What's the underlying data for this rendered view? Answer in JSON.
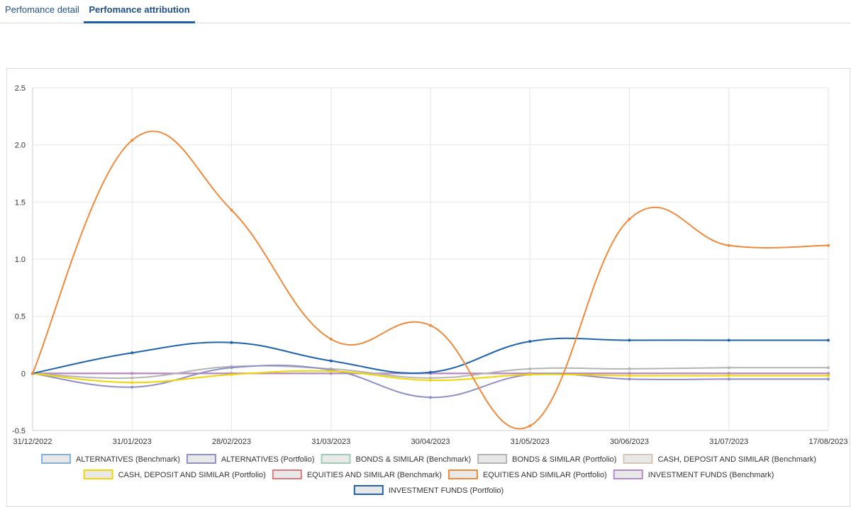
{
  "tabs": [
    {
      "label": "Perfomance detail",
      "active": false
    },
    {
      "label": "Perfomance attribution",
      "active": true
    }
  ],
  "colors": {
    "tab_accent": "#1a5fa8",
    "grid": "#e6e6e6"
  },
  "chart_data": {
    "type": "line",
    "title": "",
    "xlabel": "",
    "ylabel": "",
    "ylim": [
      -0.5,
      2.5
    ],
    "yticks": [
      "2.5",
      "2.0",
      "1.5",
      "1.0",
      "0.5",
      "0",
      "-0.5"
    ],
    "ytick_values": [
      2.5,
      2.0,
      1.5,
      1.0,
      0.5,
      0,
      -0.5
    ],
    "categories": [
      "31/12/2022",
      "31/01/2023",
      "28/02/2023",
      "31/03/2023",
      "30/04/2023",
      "31/05/2023",
      "30/06/2023",
      "31/07/2023",
      "17/08/2023"
    ],
    "grid": true,
    "legend_position": "bottom",
    "series": [
      {
        "name": "ALTERNATIVES (Benchmark)",
        "color": "#7fb2e0",
        "values": [
          0,
          0,
          0,
          0,
          0,
          0,
          0,
          0,
          0
        ]
      },
      {
        "name": "ALTERNATIVES (Portfolio)",
        "color": "#8f8fc9",
        "values": [
          0,
          -0.12,
          0.05,
          0.03,
          -0.21,
          -0.01,
          -0.05,
          -0.05,
          -0.05
        ]
      },
      {
        "name": "BONDS & SIMILAR (Benchmark)",
        "color": "#9bcfb8",
        "values": [
          0,
          0,
          0,
          0,
          0,
          0,
          0,
          0,
          0
        ]
      },
      {
        "name": "BONDS & SIMILAR (Portfolio)",
        "color": "#b4b4b4",
        "values": [
          0,
          -0.04,
          0.06,
          0.04,
          -0.04,
          0.04,
          0.04,
          0.05,
          0.05
        ]
      },
      {
        "name": "CASH, DEPOSIT AND SIMILAR (Benchmark)",
        "color": "#d9c6b0",
        "values": [
          0,
          0,
          0,
          0,
          0,
          0,
          0,
          0,
          0
        ]
      },
      {
        "name": "CASH, DEPOSIT AND SIMILAR (Portfolio)",
        "color": "#f2d500",
        "values": [
          0,
          -0.08,
          -0.01,
          0.02,
          -0.06,
          -0.01,
          -0.02,
          -0.02,
          -0.02
        ]
      },
      {
        "name": "EQUITIES AND SIMILAR (Benchmark)",
        "color": "#e07a7a",
        "values": [
          0,
          0,
          0,
          0,
          0,
          0,
          0,
          0,
          0
        ]
      },
      {
        "name": "EQUITIES AND SIMILAR (Portfolio)",
        "color": "#f08a3c",
        "values": [
          0,
          2.04,
          1.43,
          0.3,
          0.42,
          -0.46,
          1.35,
          1.12,
          1.12
        ]
      },
      {
        "name": "INVESTMENT FUNDS (Benchmark)",
        "color": "#b48ac9",
        "values": [
          0,
          0,
          0,
          0,
          0,
          0,
          0,
          0,
          0
        ]
      },
      {
        "name": "INVESTMENT FUNDS (Portfolio)",
        "color": "#1f63ad",
        "values": [
          0,
          0.18,
          0.27,
          0.11,
          0.01,
          0.28,
          0.29,
          0.29,
          0.29
        ]
      }
    ]
  }
}
